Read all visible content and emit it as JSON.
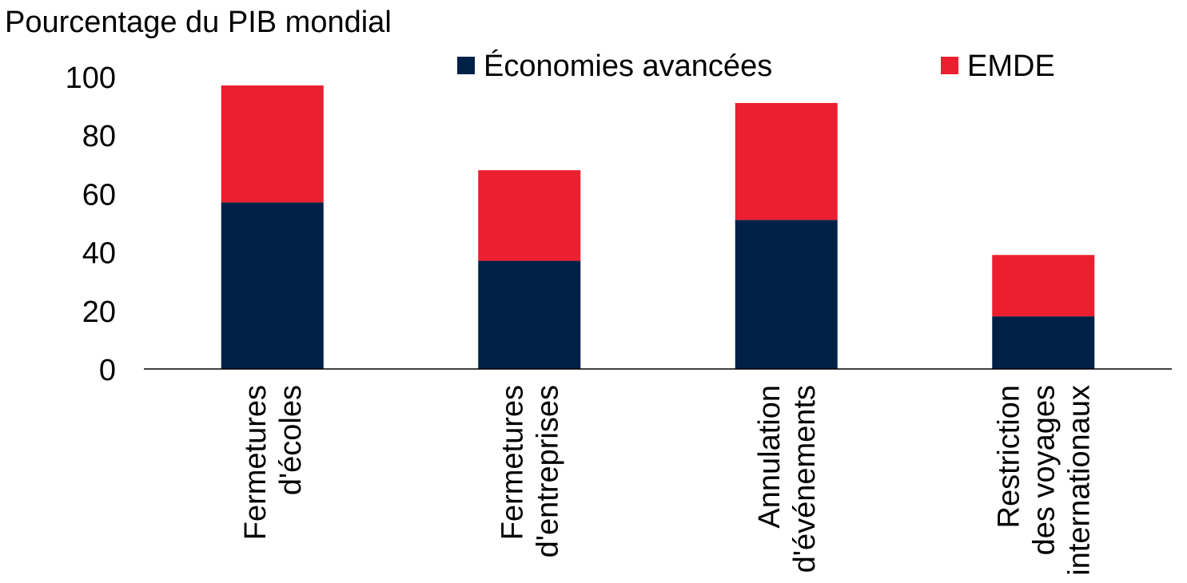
{
  "chart_data": {
    "type": "bar",
    "stacked": true,
    "ylabel": "Pourcentage du PIB mondial",
    "ylim": [
      0,
      100
    ],
    "yticks": [
      0,
      20,
      40,
      60,
      80,
      100
    ],
    "grid": false,
    "legend_position": "top",
    "categories": [
      [
        "Fermetures",
        "d'écoles"
      ],
      [
        "Fermetures",
        "d'entreprises"
      ],
      [
        "Annulation",
        "d'événements"
      ],
      [
        "Restriction",
        "des voyages",
        "internationaux"
      ]
    ],
    "series": [
      {
        "name": "Économies avancées",
        "color": "#002147",
        "values": [
          57,
          37,
          51,
          18
        ]
      },
      {
        "name": "EMDE",
        "color": "#eb1f30",
        "values": [
          40,
          31,
          40,
          21
        ]
      }
    ]
  }
}
